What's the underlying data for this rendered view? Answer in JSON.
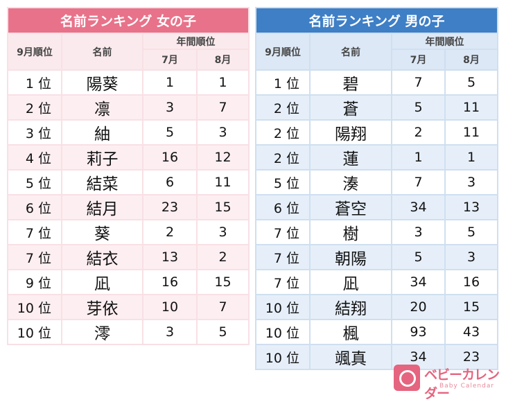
{
  "girls": {
    "title": "名前ランキング 女の子",
    "headers": {
      "rank": "9月順位",
      "name": "名前",
      "annual": "年間順位",
      "jul": "7月",
      "aug": "8月"
    },
    "rows": [
      {
        "rank": "1 位",
        "name": "陽葵",
        "jul": "1",
        "aug": "1"
      },
      {
        "rank": "2 位",
        "name": "凛",
        "jul": "3",
        "aug": "7"
      },
      {
        "rank": "3 位",
        "name": "紬",
        "jul": "5",
        "aug": "3"
      },
      {
        "rank": "4 位",
        "name": "莉子",
        "jul": "16",
        "aug": "12"
      },
      {
        "rank": "5 位",
        "name": "結菜",
        "jul": "6",
        "aug": "11"
      },
      {
        "rank": "6 位",
        "name": "結月",
        "jul": "23",
        "aug": "15"
      },
      {
        "rank": "7 位",
        "name": "葵",
        "jul": "2",
        "aug": "3"
      },
      {
        "rank": "7 位",
        "name": "結衣",
        "jul": "13",
        "aug": "2"
      },
      {
        "rank": "9 位",
        "name": "凪",
        "jul": "16",
        "aug": "15"
      },
      {
        "rank": "10 位",
        "name": "芽依",
        "jul": "10",
        "aug": "7"
      },
      {
        "rank": "10 位",
        "name": "澪",
        "jul": "3",
        "aug": "5"
      }
    ]
  },
  "boys": {
    "title": "名前ランキング 男の子",
    "headers": {
      "rank": "9月順位",
      "name": "名前",
      "annual": "年間順位",
      "jul": "7月",
      "aug": "8月"
    },
    "rows": [
      {
        "rank": "1 位",
        "name": "碧",
        "jul": "7",
        "aug": "5"
      },
      {
        "rank": "2 位",
        "name": "蒼",
        "jul": "5",
        "aug": "11"
      },
      {
        "rank": "2 位",
        "name": "陽翔",
        "jul": "2",
        "aug": "11"
      },
      {
        "rank": "2 位",
        "name": "蓮",
        "jul": "1",
        "aug": "1"
      },
      {
        "rank": "5 位",
        "name": "湊",
        "jul": "7",
        "aug": "3"
      },
      {
        "rank": "6 位",
        "name": "蒼空",
        "jul": "34",
        "aug": "13"
      },
      {
        "rank": "7 位",
        "name": "樹",
        "jul": "3",
        "aug": "5"
      },
      {
        "rank": "7 位",
        "name": "朝陽",
        "jul": "5",
        "aug": "3"
      },
      {
        "rank": "7 位",
        "name": "凪",
        "jul": "34",
        "aug": "16"
      },
      {
        "rank": "10 位",
        "name": "結翔",
        "jul": "20",
        "aug": "15"
      },
      {
        "rank": "10 位",
        "name": "楓",
        "jul": "93",
        "aug": "43"
      },
      {
        "rank": "10 位",
        "name": "颯真",
        "jul": "34",
        "aug": "23"
      }
    ]
  },
  "logo": {
    "jp": "ベビーカレンダー",
    "en": "Baby Calendar",
    "icon": "baby-calendar-logo-icon"
  },
  "colors": {
    "girls_accent": "#e8728a",
    "boys_accent": "#3e7fc6",
    "logo": "#e5647f"
  }
}
